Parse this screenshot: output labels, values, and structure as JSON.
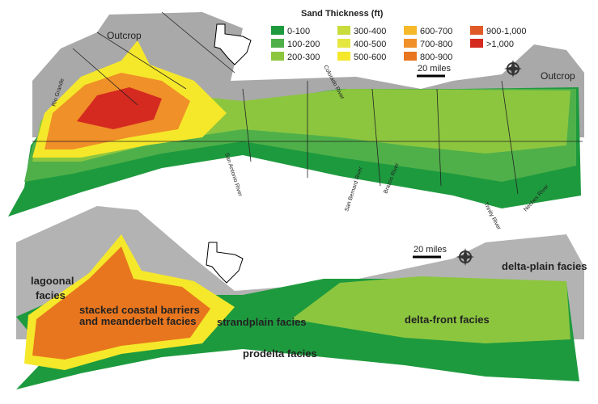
{
  "legend": {
    "title": "Sand Thickness (ft)",
    "items": [
      {
        "label": "0-100",
        "color": "#1e9a3e"
      },
      {
        "label": "100-200",
        "color": "#4fb04a"
      },
      {
        "label": "200-300",
        "color": "#8cc63f"
      },
      {
        "label": "300-400",
        "color": "#c8dc3c"
      },
      {
        "label": "400-500",
        "color": "#e6e640"
      },
      {
        "label": "500-600",
        "color": "#f5e82a"
      },
      {
        "label": "600-700",
        "color": "#f5b92a"
      },
      {
        "label": "700-800",
        "color": "#f09028"
      },
      {
        "label": "800-900",
        "color": "#e8761e"
      },
      {
        "label": "900-1,000",
        "color": "#e05a28"
      },
      {
        "label": ">1,000",
        "color": "#d42a20"
      }
    ]
  },
  "top_map": {
    "outcrop_left": "Outcrop",
    "outcrop_right": "Outcrop",
    "scale": "20 miles",
    "rivers": {
      "rio_grande": "Rio Grande",
      "san_antonio": "San Antonio River",
      "colorado": "Colorado River",
      "san_bernard": "San Bernard River",
      "brazos": "Brazos River",
      "trinity": "Trinity River",
      "neches": "Neches River"
    }
  },
  "bottom_map": {
    "scale": "20 miles",
    "lagoonal": [
      "lagoonal",
      "facies"
    ],
    "barriers": [
      "stacked coastal barriers",
      "and meanderbelt facies"
    ],
    "strandplain": "strandplain facies",
    "prodelta": "prodelta facies",
    "delta_front": "delta-front facies",
    "delta_plain": "delta-plain facies"
  }
}
